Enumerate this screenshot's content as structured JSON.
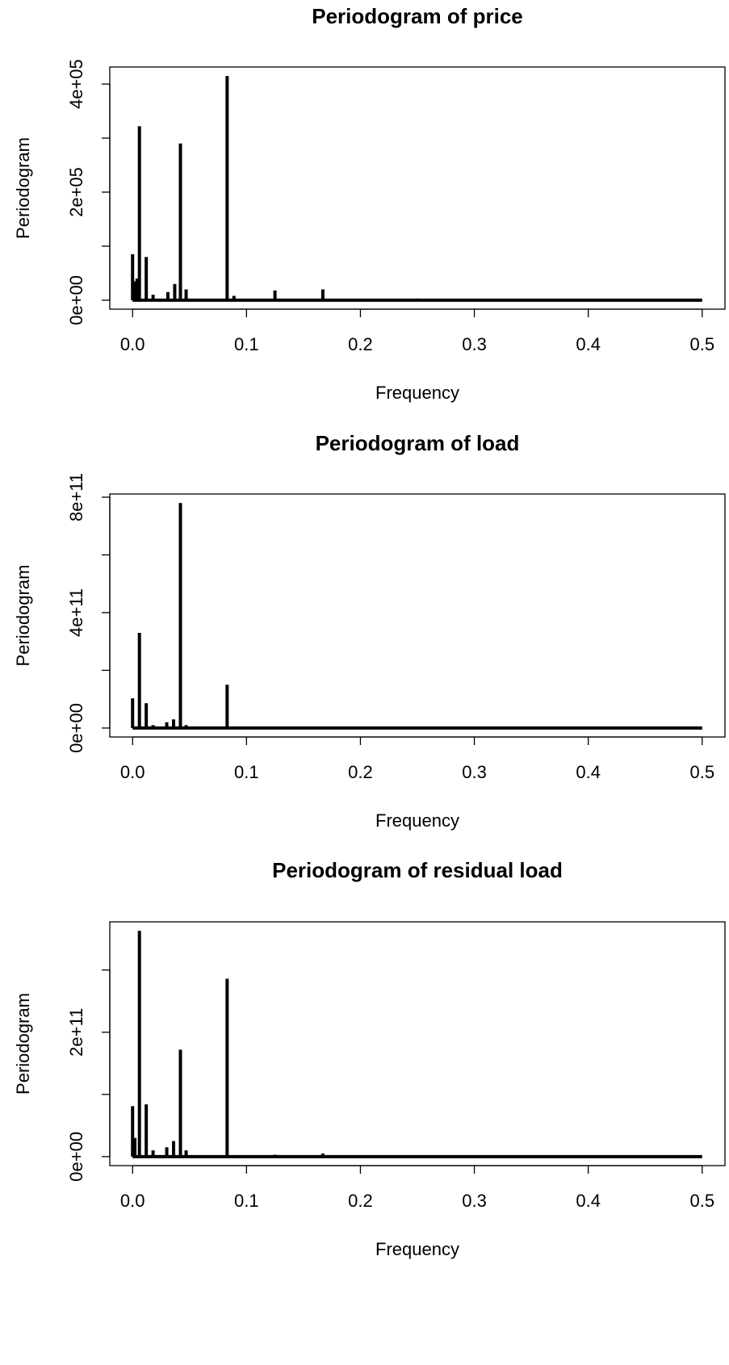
{
  "chart_data": [
    {
      "type": "spike",
      "title": "Periodogram of price",
      "xlabel": "Frequency",
      "ylabel": "Periodogram",
      "x": [
        0.0,
        0.0015,
        0.004,
        0.006,
        0.012,
        0.018,
        0.031,
        0.037,
        0.042,
        0.047,
        0.083,
        0.089,
        0.125,
        0.167,
        0.25,
        0.5
      ],
      "values": [
        85000,
        35000,
        40000,
        322000,
        80000,
        10000,
        15000,
        30000,
        290000,
        20000,
        415000,
        8000,
        18000,
        20000,
        3000,
        0
      ],
      "color": "#000000",
      "xlim": [
        -0.02,
        0.52
      ],
      "ylim": [
        -16600,
        431600
      ],
      "xticks": [
        {
          "value": 0,
          "label": "0.0"
        },
        0.1,
        0.2,
        0.3,
        0.4,
        0.5
      ],
      "yticks": [
        {
          "value": 0,
          "label": "0e+00"
        },
        {
          "value": 100000,
          "label": null
        },
        {
          "value": 200000,
          "label": "2e+05"
        },
        {
          "value": 300000,
          "label": null
        },
        {
          "value": 400000,
          "label": "4e+05"
        }
      ]
    },
    {
      "type": "spike",
      "title": "Periodogram of load",
      "xlabel": "Frequency",
      "ylabel": "Periodogram",
      "x": [
        0.0,
        0.006,
        0.012,
        0.018,
        0.03,
        0.036,
        0.042,
        0.047,
        0.083,
        0.167,
        0.5
      ],
      "values": [
        103000000000,
        330000000000,
        86000000000,
        10000000000,
        20000000000,
        30000000000,
        780000000000,
        10000000000,
        150000000000,
        2000000000,
        0
      ],
      "color": "#000000",
      "xlim": [
        -0.02,
        0.52
      ],
      "ylim": [
        -31000000000,
        811000000000
      ],
      "xticks": [
        {
          "value": 0,
          "label": "0.0"
        },
        0.1,
        0.2,
        0.3,
        0.4,
        0.5
      ],
      "yticks": [
        {
          "value": 0,
          "label": "0e+00"
        },
        {
          "value": 200000000000,
          "label": null
        },
        {
          "value": 400000000000,
          "label": "4e+11"
        },
        {
          "value": 600000000000,
          "label": null
        },
        {
          "value": 800000000000,
          "label": "8e+11"
        }
      ]
    },
    {
      "type": "spike",
      "title": "Periodogram of residual load",
      "xlabel": "Frequency",
      "ylabel": "Periodogram",
      "x": [
        0.0,
        0.002,
        0.006,
        0.012,
        0.018,
        0.03,
        0.036,
        0.042,
        0.047,
        0.083,
        0.125,
        0.167,
        0.5
      ],
      "values": [
        81000000000,
        30000000000,
        363000000000,
        84000000000,
        10000000000,
        15000000000,
        25000000000,
        172000000000,
        10000000000,
        286000000000,
        3000000000,
        5000000000,
        0
      ],
      "color": "#000000",
      "xlim": [
        -0.02,
        0.52
      ],
      "ylim": [
        -14500000000,
        377500000000
      ],
      "xticks": [
        {
          "value": 0,
          "label": "0.0"
        },
        0.1,
        0.2,
        0.3,
        0.4,
        0.5
      ],
      "yticks": [
        {
          "value": 0,
          "label": "0e+00"
        },
        {
          "value": 100000000000,
          "label": null
        },
        {
          "value": 200000000000,
          "label": "2e+11"
        },
        {
          "value": 300000000000,
          "label": null
        }
      ]
    }
  ]
}
